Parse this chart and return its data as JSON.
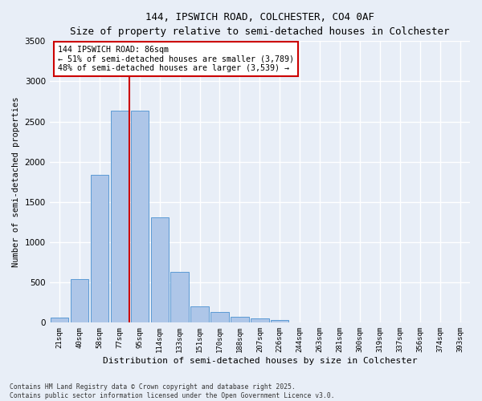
{
  "title_line1": "144, IPSWICH ROAD, COLCHESTER, CO4 0AF",
  "title_line2": "Size of property relative to semi-detached houses in Colchester",
  "xlabel": "Distribution of semi-detached houses by size in Colchester",
  "ylabel": "Number of semi-detached properties",
  "categories": [
    "21sqm",
    "40sqm",
    "58sqm",
    "77sqm",
    "95sqm",
    "114sqm",
    "133sqm",
    "151sqm",
    "170sqm",
    "188sqm",
    "207sqm",
    "226sqm",
    "244sqm",
    "263sqm",
    "281sqm",
    "300sqm",
    "319sqm",
    "337sqm",
    "356sqm",
    "374sqm",
    "393sqm"
  ],
  "values": [
    60,
    540,
    1840,
    2640,
    2640,
    1310,
    630,
    200,
    130,
    75,
    50,
    30,
    0,
    0,
    0,
    0,
    0,
    0,
    0,
    0,
    0
  ],
  "bar_color": "#aec6e8",
  "bar_edge_color": "#5b9bd5",
  "background_color": "#e8eef7",
  "grid_color": "#ffffff",
  "property_line_x": 3.5,
  "annotation_title": "144 IPSWICH ROAD: 86sqm",
  "annotation_line1": "← 51% of semi-detached houses are smaller (3,789)",
  "annotation_line2": "48% of semi-detached houses are larger (3,539) →",
  "annotation_box_color": "#ffffff",
  "annotation_border_color": "#cc0000",
  "ylim": [
    0,
    3500
  ],
  "yticks": [
    0,
    500,
    1000,
    1500,
    2000,
    2500,
    3000,
    3500
  ],
  "footer_line1": "Contains HM Land Registry data © Crown copyright and database right 2025.",
  "footer_line2": "Contains public sector information licensed under the Open Government Licence v3.0."
}
